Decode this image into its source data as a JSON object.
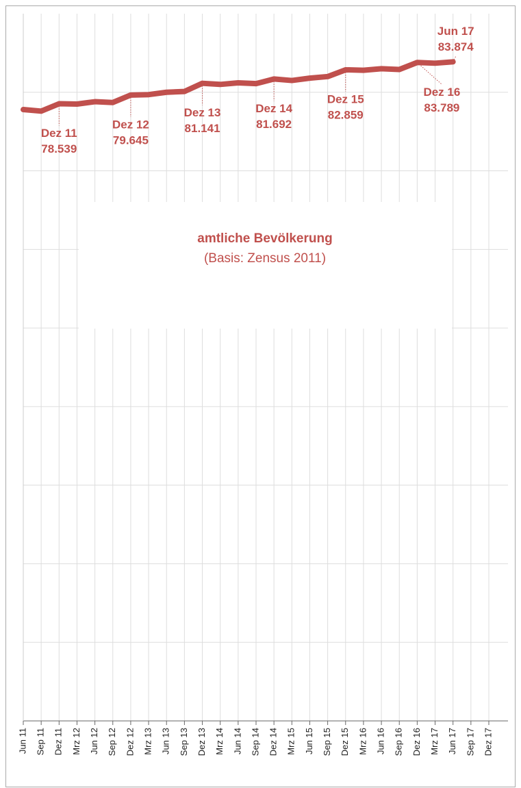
{
  "chart_data": {
    "type": "line",
    "title": "amtliche Bevölkerung",
    "subtitle": "(Basis: Zensus 2011)",
    "categories": [
      "Jun 11",
      "Sep 11",
      "Dez 11",
      "Mrz 12",
      "Jun 12",
      "Sep 12",
      "Dez 12",
      "Mrz 13",
      "Jun 13",
      "Sep 13",
      "Dez 13",
      "Mrz 14",
      "Jun 14",
      "Sep 14",
      "Dez 14",
      "Mrz 15",
      "Jun 15",
      "Sep 15",
      "Dez 15",
      "Mrz 16",
      "Jun 16",
      "Sep 16",
      "Dez 16",
      "Mrz 17",
      "Jun 17",
      "Sep 17",
      "Dez 17"
    ],
    "series": [
      {
        "name": "amtliche Bevölkerung",
        "color": "#c0504d",
        "values": [
          77.8,
          77.6,
          78.539,
          78.5,
          78.8,
          78.7,
          79.645,
          79.7,
          80.0,
          80.1,
          81.141,
          81.0,
          81.2,
          81.1,
          81.692,
          81.5,
          81.8,
          82.0,
          82.859,
          82.8,
          83.0,
          82.9,
          83.789,
          83.7,
          83.874,
          null,
          null
        ],
        "value_labels": [
          null,
          null,
          "78.539",
          null,
          null,
          null,
          "79.645",
          null,
          null,
          null,
          "81.141",
          null,
          null,
          null,
          "81.692",
          null,
          null,
          null,
          "82.859",
          null,
          null,
          null,
          "83.789",
          null,
          "83.874",
          null,
          null
        ]
      }
    ],
    "ylim": [
      0,
      90
    ],
    "yticks": [
      0,
      10,
      20,
      30,
      40,
      50,
      60,
      70,
      80
    ],
    "grid": true
  }
}
